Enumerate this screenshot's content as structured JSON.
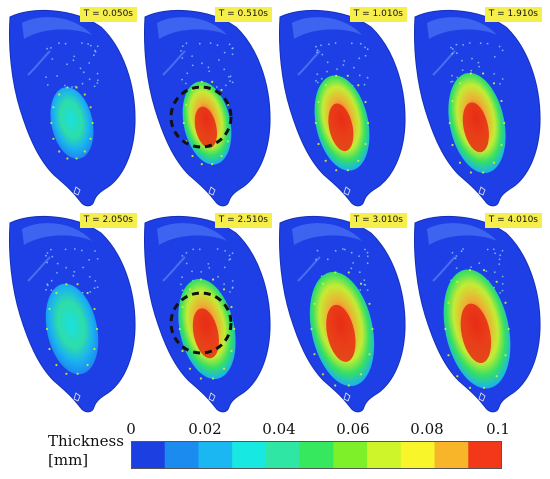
{
  "panels": [
    {
      "time": "T = 0.050s",
      "spread": 0.3,
      "intensity": 0.1,
      "circle": false
    },
    {
      "time": "T = 0.510s",
      "spread": 0.42,
      "intensity": 0.7,
      "circle": true
    },
    {
      "time": "T = 1.010s",
      "spread": 0.55,
      "intensity": 0.85,
      "circle": false
    },
    {
      "time": "T = 1.910s",
      "spread": 0.6,
      "intensity": 0.7,
      "circle": false
    },
    {
      "time": "T = 2.050s",
      "spread": 0.5,
      "intensity": 0.25,
      "circle": false
    },
    {
      "time": "T = 2.510s",
      "spread": 0.6,
      "intensity": 0.85,
      "circle": true
    },
    {
      "time": "T = 3.010s",
      "spread": 0.75,
      "intensity": 0.9,
      "circle": false
    },
    {
      "time": "T = 4.010s",
      "spread": 0.8,
      "intensity": 0.95,
      "circle": false
    }
  ],
  "legend": {
    "title": "Thickness",
    "unit": "[mm]",
    "ticks": [
      "0",
      "0.02",
      "0.04",
      "0.06",
      "0.08",
      "0.1"
    ],
    "colors": [
      "#1b3fe0",
      "#1b8bf0",
      "#1ab7f2",
      "#18e8e2",
      "#2fe6a4",
      "#35e85e",
      "#7ef02a",
      "#cdf52a",
      "#f8f52a",
      "#f8b52a",
      "#f23818"
    ]
  }
}
